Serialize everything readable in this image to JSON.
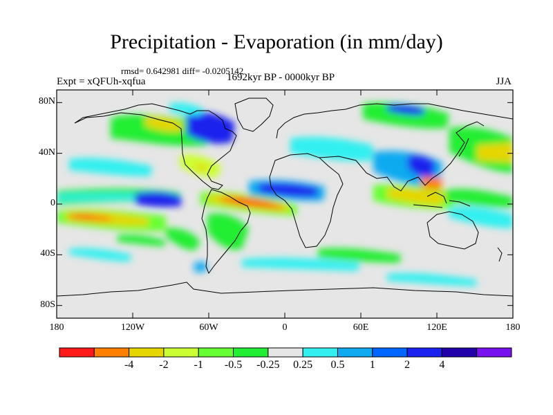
{
  "title": "Precipitation - Evaporation (in mm/day)",
  "stats_line": "rmsd= 0.642981 diff= -0.0205142",
  "period": "1692kyr BP - 0000kyr BP",
  "experiment": "Expt = xQFUh-xqfua",
  "season": "JJA",
  "y_ticks": [
    {
      "label": "80N",
      "lat": 80
    },
    {
      "label": "40N",
      "lat": 40
    },
    {
      "label": "0",
      "lat": 0
    },
    {
      "label": "40S",
      "lat": -40
    },
    {
      "label": "80S",
      "lat": -80
    }
  ],
  "x_ticks": [
    {
      "label": "180",
      "lon": -180
    },
    {
      "label": "120W",
      "lon": -120
    },
    {
      "label": "60W",
      "lon": -60
    },
    {
      "label": "0",
      "lon": 0
    },
    {
      "label": "60E",
      "lon": 60
    },
    {
      "label": "120E",
      "lon": 120
    },
    {
      "label": "180",
      "lon": 180
    }
  ],
  "colorbar": {
    "colors": [
      "#ff1a1a",
      "#ff8000",
      "#e6d600",
      "#ccff33",
      "#66ff33",
      "#22ee33",
      "#e6e6e6",
      "#33f0f0",
      "#11aaf0",
      "#0066ff",
      "#1a22ee",
      "#2200aa",
      "#7711ee"
    ],
    "labels": [
      "-4",
      "-2",
      "-1",
      "-0.5",
      "-0.25",
      "0.25",
      "0.5",
      "1",
      "2",
      "4"
    ]
  },
  "colors": {
    "land_background": "#e6e6e6",
    "coastline": "#000000"
  }
}
